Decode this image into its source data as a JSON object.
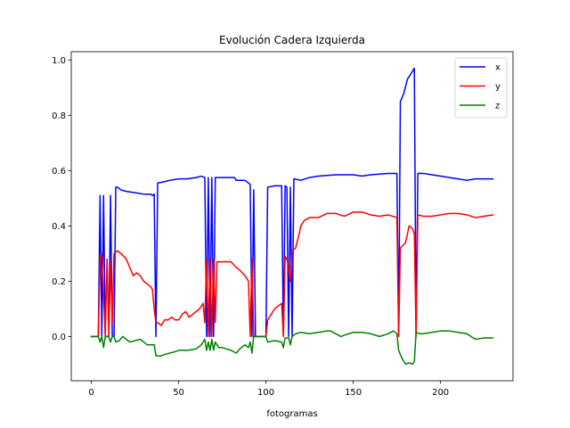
{
  "chart_data": {
    "type": "line",
    "title": "Evolución Cadera Izquierda",
    "xlabel": "fotogramas",
    "ylabel": "",
    "xlim": [
      -11.5,
      241.5
    ],
    "ylim": [
      -0.16,
      1.03
    ],
    "x_ticks": [
      0,
      50,
      100,
      150,
      200
    ],
    "x_tick_labels": [
      "0",
      "50",
      "100",
      "150",
      "200"
    ],
    "y_ticks": [
      0.0,
      0.2,
      0.4,
      0.6,
      0.8,
      1.0
    ],
    "y_tick_labels": [
      "0.0",
      "0.2",
      "0.4",
      "0.6",
      "0.8",
      "1.0"
    ],
    "grid": false,
    "legend_position": "top-right",
    "series": [
      {
        "name": "x",
        "color": "#0000ff",
        "points": [
          [
            0,
            0
          ],
          [
            4,
            0
          ],
          [
            5,
            0.51
          ],
          [
            6,
            0
          ],
          [
            7,
            0.51
          ],
          [
            8,
            0
          ],
          [
            10,
            0
          ],
          [
            11,
            0.51
          ],
          [
            12,
            0
          ],
          [
            13,
            0
          ],
          [
            14,
            0.54
          ],
          [
            15,
            0.54
          ],
          [
            17,
            0.53
          ],
          [
            20,
            0.525
          ],
          [
            25,
            0.52
          ],
          [
            30,
            0.515
          ],
          [
            34,
            0.515
          ],
          [
            35,
            0.51
          ],
          [
            36,
            0.515
          ],
          [
            37,
            0
          ],
          [
            38,
            0.555
          ],
          [
            42,
            0.56
          ],
          [
            45,
            0.565
          ],
          [
            50,
            0.57
          ],
          [
            55,
            0.57
          ],
          [
            60,
            0.575
          ],
          [
            63,
            0.58
          ],
          [
            65,
            0.575
          ],
          [
            66,
            0
          ],
          [
            67,
            0.575
          ],
          [
            68,
            0
          ],
          [
            69,
            0.575
          ],
          [
            70,
            0
          ],
          [
            71,
            0.575
          ],
          [
            75,
            0.575
          ],
          [
            80,
            0.575
          ],
          [
            82,
            0.575
          ],
          [
            83,
            0.565
          ],
          [
            88,
            0.565
          ],
          [
            91,
            0.55
          ],
          [
            92,
            0
          ],
          [
            93,
            0.53
          ],
          [
            94,
            0
          ],
          [
            100,
            0
          ],
          [
            101,
            0.54
          ],
          [
            105,
            0.545
          ],
          [
            109,
            0.545
          ],
          [
            110,
            0
          ],
          [
            111,
            0.545
          ],
          [
            112,
            0.54
          ],
          [
            113,
            0
          ],
          [
            114,
            0.54
          ],
          [
            115,
            0
          ],
          [
            116,
            0.57
          ],
          [
            120,
            0.565
          ],
          [
            125,
            0.575
          ],
          [
            130,
            0.58
          ],
          [
            140,
            0.585
          ],
          [
            150,
            0.585
          ],
          [
            155,
            0.58
          ],
          [
            160,
            0.585
          ],
          [
            170,
            0.59
          ],
          [
            175,
            0.59
          ],
          [
            176,
            0
          ],
          [
            177,
            0.85
          ],
          [
            179,
            0.88
          ],
          [
            181,
            0.93
          ],
          [
            183,
            0.95
          ],
          [
            185,
            0.97
          ],
          [
            186,
            0
          ],
          [
            187,
            0.59
          ],
          [
            190,
            0.59
          ],
          [
            195,
            0.585
          ],
          [
            200,
            0.58
          ],
          [
            205,
            0.575
          ],
          [
            210,
            0.57
          ],
          [
            215,
            0.565
          ],
          [
            220,
            0.57
          ],
          [
            225,
            0.57
          ],
          [
            230,
            0.57
          ]
        ]
      },
      {
        "name": "y",
        "color": "#ff0000",
        "points": [
          [
            0,
            0
          ],
          [
            4,
            0
          ],
          [
            5,
            0.29
          ],
          [
            6,
            0.3
          ],
          [
            7,
            0.15
          ],
          [
            8,
            0
          ],
          [
            9,
            0.28
          ],
          [
            10,
            0
          ],
          [
            11,
            0.27
          ],
          [
            12,
            0.05
          ],
          [
            13,
            0.3
          ],
          [
            15,
            0.31
          ],
          [
            17,
            0.3
          ],
          [
            20,
            0.28
          ],
          [
            22,
            0.25
          ],
          [
            24,
            0.22
          ],
          [
            26,
            0.23
          ],
          [
            28,
            0.22
          ],
          [
            30,
            0.2
          ],
          [
            32,
            0.19
          ],
          [
            34,
            0.18
          ],
          [
            35,
            0.17
          ],
          [
            36,
            0.1
          ],
          [
            37,
            0.05
          ],
          [
            38,
            0.05
          ],
          [
            40,
            0.04
          ],
          [
            42,
            0.06
          ],
          [
            44,
            0.06
          ],
          [
            46,
            0.07
          ],
          [
            48,
            0.06
          ],
          [
            50,
            0.06
          ],
          [
            52,
            0.08
          ],
          [
            54,
            0.09
          ],
          [
            56,
            0.07
          ],
          [
            58,
            0.08
          ],
          [
            60,
            0.09
          ],
          [
            62,
            0.1
          ],
          [
            64,
            0.12
          ],
          [
            65,
            0.05
          ],
          [
            66,
            0.28
          ],
          [
            67,
            0
          ],
          [
            68,
            0.28
          ],
          [
            69,
            0
          ],
          [
            70,
            0.28
          ],
          [
            71,
            0.05
          ],
          [
            72,
            0.27
          ],
          [
            75,
            0.27
          ],
          [
            80,
            0.27
          ],
          [
            83,
            0.25
          ],
          [
            85,
            0.24
          ],
          [
            88,
            0.22
          ],
          [
            90,
            0.2
          ],
          [
            91,
            0
          ],
          [
            92,
            0.28
          ],
          [
            93,
            0
          ],
          [
            100,
            0
          ],
          [
            101,
            0.06
          ],
          [
            103,
            0.08
          ],
          [
            105,
            0.1
          ],
          [
            107,
            0.11
          ],
          [
            109,
            0.12
          ],
          [
            110,
            0
          ],
          [
            111,
            0.29
          ],
          [
            112,
            0.28
          ],
          [
            113,
            0.25
          ],
          [
            114,
            0.2
          ],
          [
            115,
            0.31
          ],
          [
            117,
            0.32
          ],
          [
            119,
            0.37
          ],
          [
            120,
            0.4
          ],
          [
            122,
            0.42
          ],
          [
            125,
            0.43
          ],
          [
            130,
            0.43
          ],
          [
            135,
            0.445
          ],
          [
            140,
            0.445
          ],
          [
            145,
            0.435
          ],
          [
            150,
            0.45
          ],
          [
            155,
            0.45
          ],
          [
            160,
            0.44
          ],
          [
            165,
            0.435
          ],
          [
            170,
            0.44
          ],
          [
            175,
            0.43
          ],
          [
            176,
            0
          ],
          [
            177,
            0.32
          ],
          [
            180,
            0.34
          ],
          [
            182,
            0.4
          ],
          [
            184,
            0.39
          ],
          [
            185,
            0.37
          ],
          [
            186,
            0
          ],
          [
            187,
            0.44
          ],
          [
            190,
            0.435
          ],
          [
            195,
            0.435
          ],
          [
            200,
            0.44
          ],
          [
            205,
            0.445
          ],
          [
            210,
            0.445
          ],
          [
            215,
            0.44
          ],
          [
            220,
            0.43
          ],
          [
            225,
            0.435
          ],
          [
            230,
            0.44
          ]
        ]
      },
      {
        "name": "z",
        "color": "#008000",
        "points": [
          [
            0,
            0
          ],
          [
            4,
            0
          ],
          [
            5,
            -0.02
          ],
          [
            6,
            0
          ],
          [
            7,
            -0.04
          ],
          [
            8,
            0
          ],
          [
            10,
            0
          ],
          [
            11,
            -0.02
          ],
          [
            12,
            0
          ],
          [
            13,
            0
          ],
          [
            14,
            -0.02
          ],
          [
            16,
            -0.015
          ],
          [
            18,
            0
          ],
          [
            20,
            -0.01
          ],
          [
            22,
            -0.02
          ],
          [
            25,
            -0.015
          ],
          [
            28,
            -0.01
          ],
          [
            30,
            -0.02
          ],
          [
            32,
            -0.03
          ],
          [
            34,
            -0.03
          ],
          [
            36,
            -0.03
          ],
          [
            37,
            -0.07
          ],
          [
            40,
            -0.07
          ],
          [
            42,
            -0.065
          ],
          [
            45,
            -0.06
          ],
          [
            48,
            -0.055
          ],
          [
            50,
            -0.05
          ],
          [
            55,
            -0.05
          ],
          [
            60,
            -0.045
          ],
          [
            63,
            -0.03
          ],
          [
            65,
            -0.01
          ],
          [
            66,
            -0.05
          ],
          [
            67,
            -0.02
          ],
          [
            68,
            -0.05
          ],
          [
            69,
            -0.01
          ],
          [
            70,
            -0.05
          ],
          [
            71,
            -0.02
          ],
          [
            73,
            -0.04
          ],
          [
            75,
            -0.04
          ],
          [
            80,
            -0.05
          ],
          [
            83,
            -0.06
          ],
          [
            85,
            -0.045
          ],
          [
            88,
            -0.03
          ],
          [
            90,
            -0.04
          ],
          [
            91,
            -0.02
          ],
          [
            92,
            -0.06
          ],
          [
            93,
            0
          ],
          [
            100,
            0
          ],
          [
            101,
            -0.02
          ],
          [
            105,
            -0.015
          ],
          [
            109,
            -0.02
          ],
          [
            110,
            -0.04
          ],
          [
            111,
            -0.005
          ],
          [
            113,
            -0.005
          ],
          [
            114,
            -0.03
          ],
          [
            115,
            0
          ],
          [
            117,
            0.01
          ],
          [
            120,
            0.015
          ],
          [
            125,
            0.01
          ],
          [
            130,
            0.015
          ],
          [
            135,
            0.02
          ],
          [
            137,
            0.02
          ],
          [
            140,
            0.01
          ],
          [
            143,
            0
          ],
          [
            145,
            0.005
          ],
          [
            150,
            0.015
          ],
          [
            155,
            0.015
          ],
          [
            160,
            0.01
          ],
          [
            165,
            0
          ],
          [
            170,
            0.01
          ],
          [
            173,
            0.02
          ],
          [
            175,
            0.01
          ],
          [
            176,
            -0.05
          ],
          [
            178,
            -0.08
          ],
          [
            180,
            -0.1
          ],
          [
            182,
            -0.095
          ],
          [
            184,
            -0.1
          ],
          [
            185,
            -0.09
          ],
          [
            186,
            0.015
          ],
          [
            188,
            0.01
          ],
          [
            190,
            0.01
          ],
          [
            195,
            0.015
          ],
          [
            200,
            0.02
          ],
          [
            205,
            0.02
          ],
          [
            210,
            0.015
          ],
          [
            215,
            0.01
          ],
          [
            220,
            -0.01
          ],
          [
            225,
            -0.005
          ],
          [
            230,
            -0.005
          ]
        ]
      }
    ]
  }
}
